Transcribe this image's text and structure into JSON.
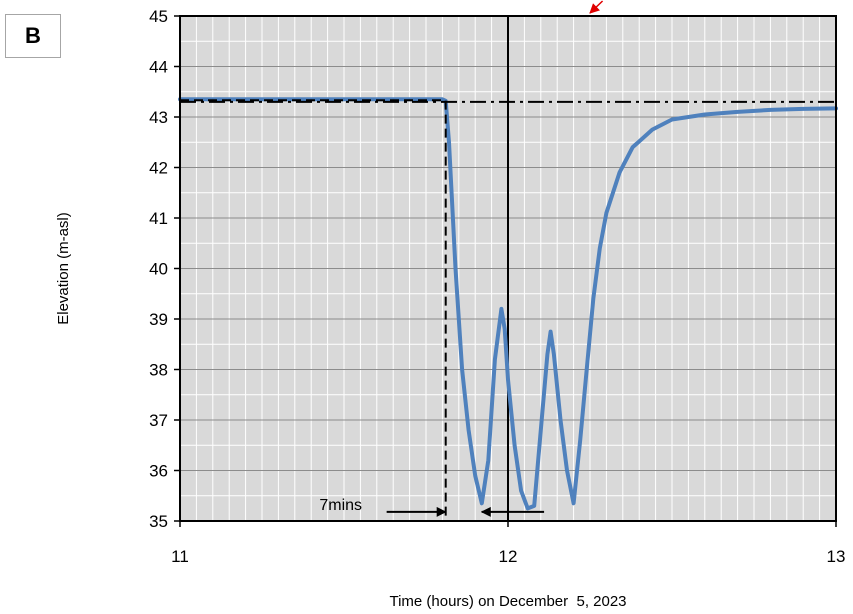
{
  "panel_label": "B",
  "chart_data": {
    "type": "line",
    "title": "",
    "xlabel": "Time (hours) on December  5, 2023",
    "ylabel": "Elevation (m-asl)",
    "xlim": [
      11,
      13
    ],
    "ylim": [
      35,
      45
    ],
    "x_ticks": [
      11,
      12,
      13
    ],
    "y_ticks": [
      35,
      36,
      37,
      38,
      39,
      40,
      41,
      42,
      43,
      44,
      45
    ],
    "grid": true,
    "background": "#d9d9d9",
    "series": [
      {
        "style": "solid",
        "color": "#4f81bd",
        "x": [
          11.0,
          11.4,
          11.8,
          11.81,
          11.82,
          11.84,
          11.86,
          11.88,
          11.9,
          11.92,
          11.94,
          11.96,
          11.98,
          11.99,
          12.0,
          12.02,
          12.04,
          12.06,
          12.08,
          12.1,
          12.12,
          12.13,
          12.14,
          12.16,
          12.18,
          12.2,
          12.22,
          12.24,
          12.26,
          12.28,
          12.3,
          12.34,
          12.38,
          12.44,
          12.5,
          12.6,
          12.7,
          12.8,
          12.9,
          13.0
        ],
        "y": [
          43.35,
          43.35,
          43.35,
          43.32,
          42.5,
          40.0,
          38.0,
          36.8,
          35.9,
          35.35,
          36.2,
          38.2,
          39.2,
          38.8,
          37.8,
          36.5,
          35.6,
          35.25,
          35.3,
          36.8,
          38.3,
          38.75,
          38.3,
          37.0,
          36.0,
          35.35,
          36.6,
          38.0,
          39.4,
          40.4,
          41.1,
          41.9,
          42.4,
          42.75,
          42.95,
          43.05,
          43.1,
          43.14,
          43.16,
          43.17
        ]
      },
      {
        "style": "dash-dot",
        "color": "#000000",
        "x": [
          11.0,
          13.0
        ],
        "y": [
          43.3,
          43.3
        ]
      },
      {
        "style": "dashed",
        "color": "#000000",
        "x": [
          11.0,
          11.81,
          11.81
        ],
        "y": [
          43.33,
          43.33,
          35.0
        ]
      }
    ],
    "reference_lines": [
      {
        "x": 12.0,
        "style": "solid",
        "color": "#000000"
      }
    ],
    "annotations": [
      {
        "text": "7mins",
        "x": 11.49,
        "y": 35.22
      }
    ],
    "interval_arrows": [
      {
        "x1": 11.63,
        "x2": 11.81,
        "y": 35.18,
        "head": "right"
      },
      {
        "x1": 11.92,
        "x2": 12.11,
        "y": 35.18,
        "head": "left"
      }
    ],
    "offscreen_arrow": {
      "color": "#e00000",
      "x_from": 12.27,
      "x_to": 12.25
    }
  }
}
